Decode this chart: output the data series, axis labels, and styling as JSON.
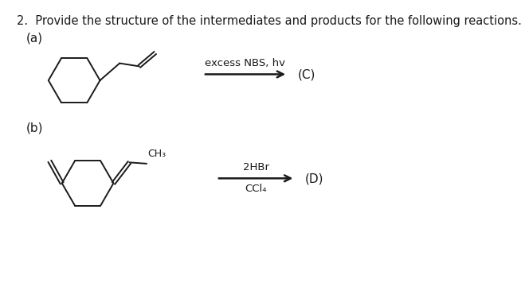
{
  "title": "2.  Provide the structure of the intermediates and products for the following reactions.",
  "label_a": "(a)",
  "label_b": "(b)",
  "reaction_a_text1": "excess NBS, hv",
  "reaction_a_label": "(C)",
  "reaction_b_text1": "2HBr",
  "reaction_b_text2": "CCl₄",
  "reaction_b_label": "(D)",
  "bg_color": "#ffffff",
  "line_color": "#1a1a1a",
  "font_size_title": 10.5,
  "font_size_label": 11,
  "font_size_reaction": 9.5,
  "font_size_ch3": 9
}
